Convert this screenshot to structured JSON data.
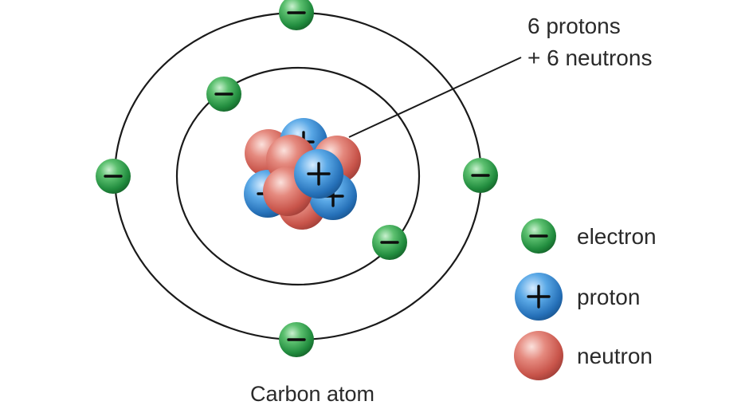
{
  "annotation": {
    "line1": "6 protons",
    "line2": "+ 6 neutrons"
  },
  "legend": {
    "electron": "electron",
    "proton": "proton",
    "neutron": "neutron"
  },
  "caption": "Carbon atom",
  "colors": {
    "electron": "#2e9e52",
    "proton": "#2f7fc4",
    "neutron": "#d0625a",
    "orbit": "#1a1a1a"
  }
}
